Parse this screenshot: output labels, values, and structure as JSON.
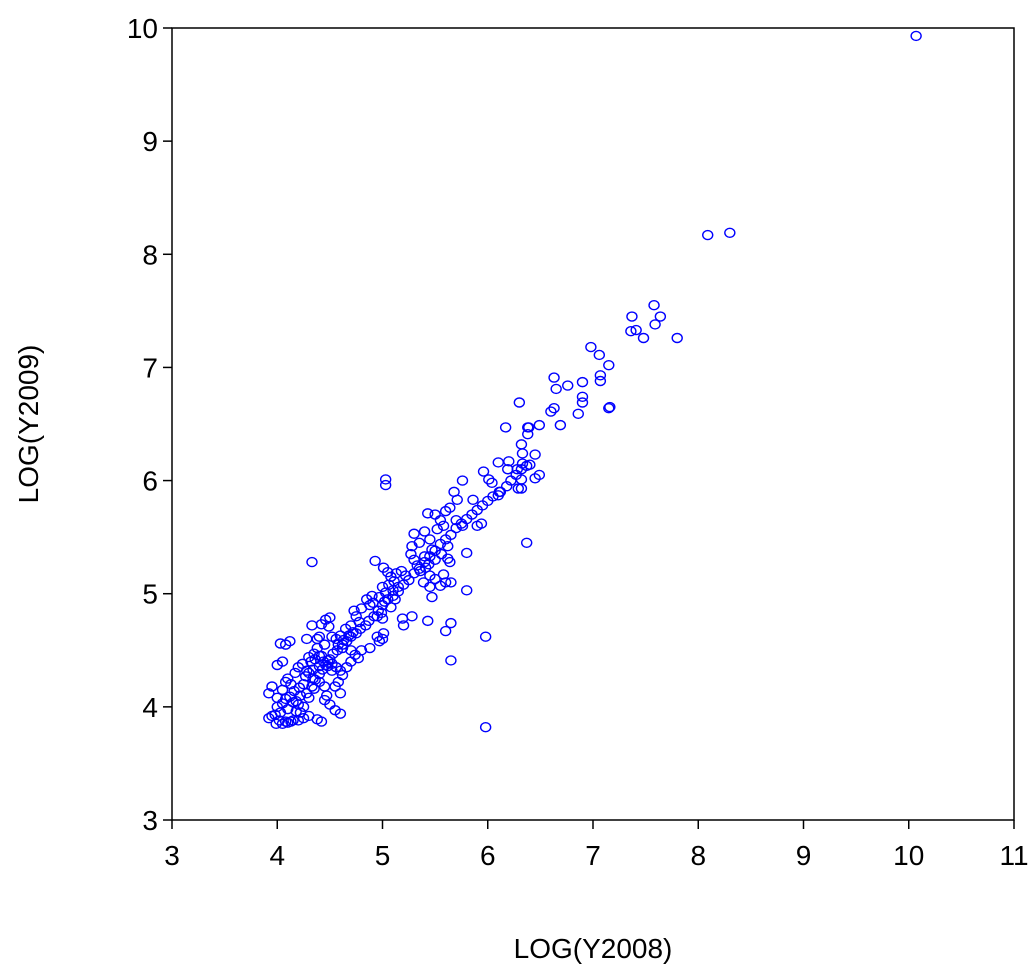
{
  "chart_data": {
    "type": "scatter",
    "title": "",
    "xlabel": "LOG(Y2008)",
    "ylabel": "LOG(Y2009)",
    "xlim": [
      3,
      11
    ],
    "ylim": [
      3,
      10
    ],
    "xticks": [
      "3",
      "4",
      "5",
      "6",
      "7",
      "8",
      "9",
      "10",
      "11"
    ],
    "yticks": [
      "3",
      "4",
      "5",
      "6",
      "7",
      "8",
      "9",
      "10"
    ],
    "grid": false,
    "legend": "none",
    "marker": "open-circle",
    "color": "#0000ff",
    "points": [
      [
        10.07,
        9.93
      ],
      [
        8.09,
        8.17
      ],
      [
        8.3,
        8.19
      ],
      [
        7.37,
        7.45
      ],
      [
        7.58,
        7.55
      ],
      [
        7.64,
        7.45
      ],
      [
        7.59,
        7.38
      ],
      [
        7.41,
        7.33
      ],
      [
        7.36,
        7.32
      ],
      [
        7.48,
        7.26
      ],
      [
        7.8,
        7.26
      ],
      [
        6.98,
        7.18
      ],
      [
        7.06,
        7.11
      ],
      [
        7.07,
        6.93
      ],
      [
        7.07,
        6.88
      ],
      [
        7.15,
        7.02
      ],
      [
        6.63,
        6.91
      ],
      [
        6.76,
        6.84
      ],
      [
        6.9,
        6.87
      ],
      [
        6.65,
        6.81
      ],
      [
        6.9,
        6.74
      ],
      [
        6.9,
        6.69
      ],
      [
        6.86,
        6.59
      ],
      [
        6.63,
        6.64
      ],
      [
        6.6,
        6.61
      ],
      [
        7.15,
        6.64
      ],
      [
        7.16,
        6.65
      ],
      [
        6.69,
        6.49
      ],
      [
        6.3,
        6.69
      ],
      [
        6.38,
        6.47
      ],
      [
        6.39,
        6.47
      ],
      [
        6.49,
        6.49
      ],
      [
        6.38,
        6.41
      ],
      [
        6.17,
        6.47
      ],
      [
        6.32,
        6.32
      ],
      [
        6.33,
        6.24
      ],
      [
        6.45,
        6.23
      ],
      [
        6.2,
        6.17
      ],
      [
        6.33,
        6.15
      ],
      [
        6.37,
        6.13
      ],
      [
        6.19,
        6.1
      ],
      [
        6.28,
        6.1
      ],
      [
        6.49,
        6.05
      ],
      [
        6.45,
        6.02
      ],
      [
        6.32,
        6.01
      ],
      [
        6.29,
        5.93
      ],
      [
        6.32,
        5.93
      ],
      [
        6.1,
        6.16
      ],
      [
        6.11,
        5.9
      ],
      [
        6.1,
        5.87
      ],
      [
        6.01,
        6.01
      ],
      [
        6.04,
        5.98
      ],
      [
        5.96,
        6.08
      ],
      [
        5.76,
        6.0
      ],
      [
        5.71,
        5.83
      ],
      [
        5.86,
        5.83
      ],
      [
        5.68,
        5.9
      ],
      [
        5.64,
        5.76
      ],
      [
        5.6,
        5.73
      ],
      [
        5.55,
        5.65
      ],
      [
        5.5,
        5.7
      ],
      [
        5.58,
        5.6
      ],
      [
        5.7,
        5.65
      ],
      [
        5.76,
        5.6
      ],
      [
        5.9,
        5.6
      ],
      [
        5.94,
        5.62
      ],
      [
        5.43,
        5.71
      ],
      [
        5.52,
        5.57
      ],
      [
        5.4,
        5.55
      ],
      [
        5.3,
        5.53
      ],
      [
        5.35,
        5.45
      ],
      [
        5.28,
        5.42
      ],
      [
        5.45,
        5.48
      ],
      [
        5.27,
        5.35
      ],
      [
        5.3,
        5.3
      ],
      [
        5.4,
        5.33
      ],
      [
        5.47,
        5.39
      ],
      [
        5.5,
        5.3
      ],
      [
        5.56,
        5.35
      ],
      [
        5.62,
        5.42
      ],
      [
        5.62,
        5.31
      ],
      [
        5.64,
        5.28
      ],
      [
        5.33,
        5.25
      ],
      [
        5.36,
        5.2
      ],
      [
        5.41,
        5.23
      ],
      [
        5.44,
        5.26
      ],
      [
        5.45,
        5.16
      ],
      [
        5.5,
        5.13
      ],
      [
        5.58,
        5.17
      ],
      [
        5.6,
        5.1
      ],
      [
        5.39,
        5.1
      ],
      [
        5.45,
        5.06
      ],
      [
        5.55,
        5.07
      ],
      [
        5.18,
        5.2
      ],
      [
        5.22,
        5.16
      ],
      [
        5.13,
        5.18
      ],
      [
        5.08,
        5.15
      ],
      [
        5.05,
        5.19
      ],
      [
        5.01,
        5.23
      ],
      [
        5.11,
        5.11
      ],
      [
        5.06,
        5.08
      ],
      [
        5.0,
        5.06
      ],
      [
        5.15,
        5.06
      ],
      [
        5.1,
        5.03
      ],
      [
        5.03,
        5.01
      ],
      [
        4.97,
        4.97
      ],
      [
        5.02,
        4.93
      ],
      [
        5.12,
        4.95
      ],
      [
        5.08,
        4.88
      ],
      [
        4.93,
        5.29
      ],
      [
        5.03,
        6.01
      ],
      [
        5.03,
        5.96
      ],
      [
        5.8,
        5.36
      ],
      [
        6.37,
        5.45
      ],
      [
        5.47,
        4.97
      ],
      [
        5.8,
        5.03
      ],
      [
        5.19,
        4.78
      ],
      [
        5.43,
        4.76
      ],
      [
        5.65,
        4.74
      ],
      [
        5.6,
        4.67
      ],
      [
        5.2,
        4.72
      ],
      [
        5.28,
        4.8
      ],
      [
        5.65,
        5.1
      ],
      [
        5.98,
        4.62
      ],
      [
        5.65,
        4.41
      ],
      [
        5.98,
        3.82
      ],
      [
        4.33,
        5.28
      ],
      [
        4.9,
        4.98
      ],
      [
        4.85,
        4.95
      ],
      [
        4.8,
        4.87
      ],
      [
        4.88,
        4.9
      ],
      [
        4.91,
        4.92
      ],
      [
        4.95,
        4.8
      ],
      [
        4.99,
        4.83
      ],
      [
        5.0,
        4.78
      ],
      [
        4.73,
        4.85
      ],
      [
        4.75,
        4.8
      ],
      [
        4.78,
        4.75
      ],
      [
        4.7,
        4.72
      ],
      [
        4.65,
        4.69
      ],
      [
        4.72,
        4.66
      ],
      [
        4.68,
        4.63
      ],
      [
        4.6,
        4.63
      ],
      [
        4.63,
        4.59
      ],
      [
        4.56,
        4.6
      ],
      [
        4.5,
        4.79
      ],
      [
        4.46,
        4.77
      ],
      [
        4.42,
        4.73
      ],
      [
        4.49,
        4.71
      ],
      [
        4.52,
        4.62
      ],
      [
        4.58,
        4.55
      ],
      [
        4.62,
        4.52
      ],
      [
        4.7,
        4.5
      ],
      [
        4.74,
        4.46
      ],
      [
        4.77,
        4.43
      ],
      [
        4.8,
        4.5
      ],
      [
        4.88,
        4.52
      ],
      [
        4.95,
        4.62
      ],
      [
        5.0,
        4.6
      ],
      [
        5.01,
        4.65
      ],
      [
        4.97,
        4.58
      ],
      [
        4.4,
        4.62
      ],
      [
        4.45,
        4.55
      ],
      [
        4.38,
        4.52
      ],
      [
        4.35,
        4.47
      ],
      [
        4.3,
        4.44
      ],
      [
        4.42,
        4.45
      ],
      [
        4.48,
        4.41
      ],
      [
        4.52,
        4.38
      ],
      [
        4.56,
        4.35
      ],
      [
        4.6,
        4.32
      ],
      [
        4.4,
        4.36
      ],
      [
        4.34,
        4.33
      ],
      [
        4.3,
        4.3
      ],
      [
        4.27,
        4.27
      ],
      [
        4.34,
        4.25
      ],
      [
        4.4,
        4.22
      ],
      [
        4.45,
        4.18
      ],
      [
        4.35,
        4.16
      ],
      [
        4.25,
        4.2
      ],
      [
        4.21,
        4.17
      ],
      [
        4.16,
        4.14
      ],
      [
        4.22,
        4.1
      ],
      [
        4.3,
        4.08
      ],
      [
        4.12,
        4.09
      ],
      [
        4.08,
        4.07
      ],
      [
        4.15,
        4.04
      ],
      [
        4.2,
        4.02
      ],
      [
        4.05,
        4.03
      ],
      [
        4.0,
        4.0
      ],
      [
        4.1,
        3.98
      ],
      [
        4.18,
        3.96
      ],
      [
        4.03,
        3.95
      ],
      [
        3.98,
        3.93
      ],
      [
        3.95,
        3.92
      ],
      [
        3.92,
        3.9
      ],
      [
        4.02,
        3.88
      ],
      [
        4.08,
        3.87
      ],
      [
        4.13,
        3.87
      ],
      [
        4.2,
        3.88
      ],
      [
        3.99,
        3.85
      ],
      [
        4.05,
        3.85
      ],
      [
        4.1,
        3.86
      ],
      [
        4.15,
        3.88
      ],
      [
        4.25,
        3.9
      ],
      [
        4.3,
        3.92
      ],
      [
        4.38,
        3.89
      ],
      [
        4.42,
        3.87
      ],
      [
        3.92,
        4.12
      ],
      [
        3.95,
        4.18
      ],
      [
        4.0,
        4.08
      ],
      [
        4.05,
        4.15
      ],
      [
        4.08,
        4.22
      ],
      [
        4.1,
        4.25
      ],
      [
        4.13,
        4.2
      ],
      [
        4.0,
        4.37
      ],
      [
        4.05,
        4.4
      ],
      [
        4.03,
        4.56
      ],
      [
        4.08,
        4.55
      ],
      [
        4.12,
        4.58
      ],
      [
        4.17,
        4.3
      ],
      [
        4.2,
        4.35
      ],
      [
        4.24,
        4.38
      ],
      [
        4.28,
        4.32
      ],
      [
        4.32,
        4.4
      ],
      [
        4.36,
        4.42
      ],
      [
        4.4,
        4.45
      ],
      [
        4.44,
        4.4
      ],
      [
        4.48,
        4.36
      ],
      [
        4.52,
        4.32
      ],
      [
        4.33,
        4.72
      ],
      [
        4.38,
        4.6
      ],
      [
        4.28,
        4.6
      ],
      [
        4.47,
        4.1
      ],
      [
        4.5,
        4.02
      ],
      [
        4.55,
        3.97
      ],
      [
        4.6,
        3.94
      ],
      [
        4.45,
        4.06
      ],
      [
        4.58,
        4.22
      ],
      [
        4.62,
        4.28
      ],
      [
        4.66,
        4.35
      ],
      [
        4.7,
        4.4
      ],
      [
        4.6,
        4.12
      ],
      [
        4.55,
        4.18
      ],
      [
        4.25,
        4.0
      ],
      [
        4.22,
        3.95
      ],
      [
        4.18,
        4.05
      ],
      [
        4.28,
        4.12
      ],
      [
        4.33,
        4.18
      ],
      [
        4.36,
        4.24
      ],
      [
        4.4,
        4.29
      ],
      [
        4.43,
        4.33
      ],
      [
        4.46,
        4.37
      ],
      [
        4.5,
        4.42
      ],
      [
        4.53,
        4.47
      ],
      [
        4.57,
        4.5
      ],
      [
        4.62,
        4.55
      ],
      [
        4.66,
        4.58
      ],
      [
        4.7,
        4.62
      ],
      [
        4.75,
        4.65
      ],
      [
        4.79,
        4.69
      ],
      [
        4.84,
        4.72
      ],
      [
        4.87,
        4.76
      ],
      [
        4.92,
        4.8
      ],
      [
        4.96,
        4.85
      ],
      [
        5.0,
        4.9
      ],
      [
        5.05,
        4.95
      ],
      [
        5.1,
        4.98
      ],
      [
        5.15,
        5.02
      ],
      [
        5.2,
        5.08
      ],
      [
        5.25,
        5.12
      ],
      [
        5.3,
        5.18
      ],
      [
        5.35,
        5.22
      ],
      [
        5.4,
        5.28
      ],
      [
        5.45,
        5.33
      ],
      [
        5.5,
        5.38
      ],
      [
        5.55,
        5.44
      ],
      [
        5.6,
        5.48
      ],
      [
        5.65,
        5.52
      ],
      [
        5.7,
        5.58
      ],
      [
        5.75,
        5.62
      ],
      [
        5.8,
        5.66
      ],
      [
        5.85,
        5.7
      ],
      [
        5.9,
        5.74
      ],
      [
        5.95,
        5.78
      ],
      [
        6.0,
        5.82
      ],
      [
        6.05,
        5.86
      ],
      [
        6.12,
        5.9
      ],
      [
        6.18,
        5.95
      ],
      [
        6.22,
        6.0
      ],
      [
        6.27,
        6.05
      ],
      [
        6.32,
        6.1
      ],
      [
        6.4,
        6.14
      ]
    ]
  }
}
